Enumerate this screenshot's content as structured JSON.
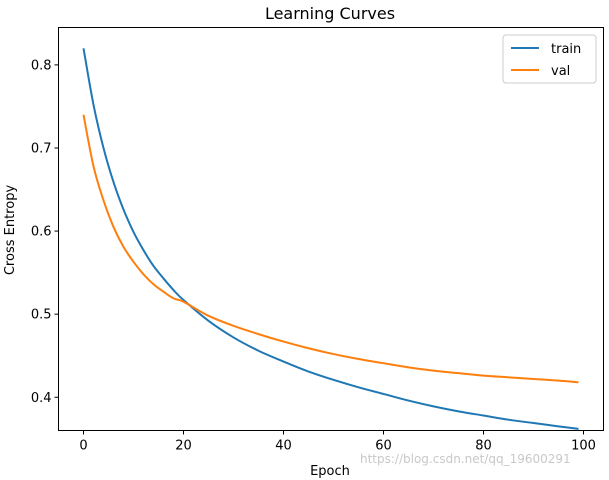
{
  "chart_data": {
    "type": "line",
    "title": "Learning Curves",
    "xlabel": "Epoch",
    "ylabel": "Cross Entropy",
    "xlim": [
      -5,
      104
    ],
    "ylim": [
      0.36,
      0.845
    ],
    "xticks": [
      0,
      20,
      40,
      60,
      80,
      100
    ],
    "yticks": [
      0.4,
      0.5,
      0.6,
      0.7,
      0.8
    ],
    "grid": false,
    "legend": "top-right",
    "series": [
      {
        "name": "train",
        "color": "#1f77b4",
        "x": [
          0,
          2,
          4,
          6,
          8,
          10,
          12,
          14,
          16,
          18,
          20,
          25,
          30,
          35,
          40,
          45,
          50,
          55,
          60,
          65,
          70,
          75,
          80,
          85,
          90,
          95,
          99
        ],
        "values": [
          0.82,
          0.752,
          0.7,
          0.659,
          0.626,
          0.599,
          0.577,
          0.558,
          0.543,
          0.529,
          0.517,
          0.492,
          0.472,
          0.456,
          0.443,
          0.431,
          0.421,
          0.412,
          0.404,
          0.396,
          0.389,
          0.383,
          0.378,
          0.373,
          0.369,
          0.365,
          0.362
        ]
      },
      {
        "name": "val",
        "color": "#ff7f0e",
        "x": [
          0,
          2,
          4,
          6,
          8,
          10,
          12,
          14,
          16,
          18,
          20,
          25,
          30,
          35,
          40,
          45,
          50,
          55,
          60,
          65,
          70,
          75,
          80,
          85,
          90,
          95,
          99
        ],
        "values": [
          0.74,
          0.678,
          0.637,
          0.605,
          0.581,
          0.563,
          0.548,
          0.536,
          0.527,
          0.519,
          0.515,
          0.498,
          0.486,
          0.476,
          0.467,
          0.459,
          0.452,
          0.446,
          0.441,
          0.436,
          0.432,
          0.429,
          0.426,
          0.424,
          0.422,
          0.42,
          0.418
        ]
      }
    ]
  },
  "watermark": "https://blog.csdn.net/qq_19600291"
}
